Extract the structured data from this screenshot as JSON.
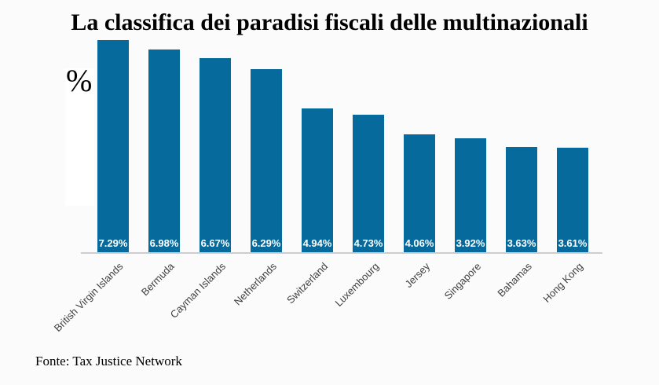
{
  "chart_data": {
    "type": "bar",
    "title": "La classifica dei paradisi fiscali delle multinazionali",
    "y_unit_label": "%",
    "source": "Fonte: Tax Justice Network",
    "categories": [
      "British Virgin Islands",
      "Bermuda",
      "Cayman Islands",
      "Netherlands",
      "Switzerland",
      "Luxembourg",
      "Jersey",
      "Singapore",
      "Bahamas",
      "Hong Kong"
    ],
    "values": [
      7.29,
      6.98,
      6.67,
      6.29,
      4.94,
      4.73,
      4.06,
      3.92,
      3.63,
      3.61
    ],
    "value_labels": [
      "7.29%",
      "6.98%",
      "6.67%",
      "6.29%",
      "4.94%",
      "4.73%",
      "4.06%",
      "3.92%",
      "3.63%",
      "3.61%"
    ],
    "bar_color": "#066a9c",
    "axis_line_color": "#cdcdcd",
    "background_color": "#fbfbfc",
    "label_color": "#3f3f3f",
    "ylim": [
      0,
      7.5
    ],
    "grid": false,
    "legend": false,
    "xlabel": "",
    "ylabel": "%"
  }
}
